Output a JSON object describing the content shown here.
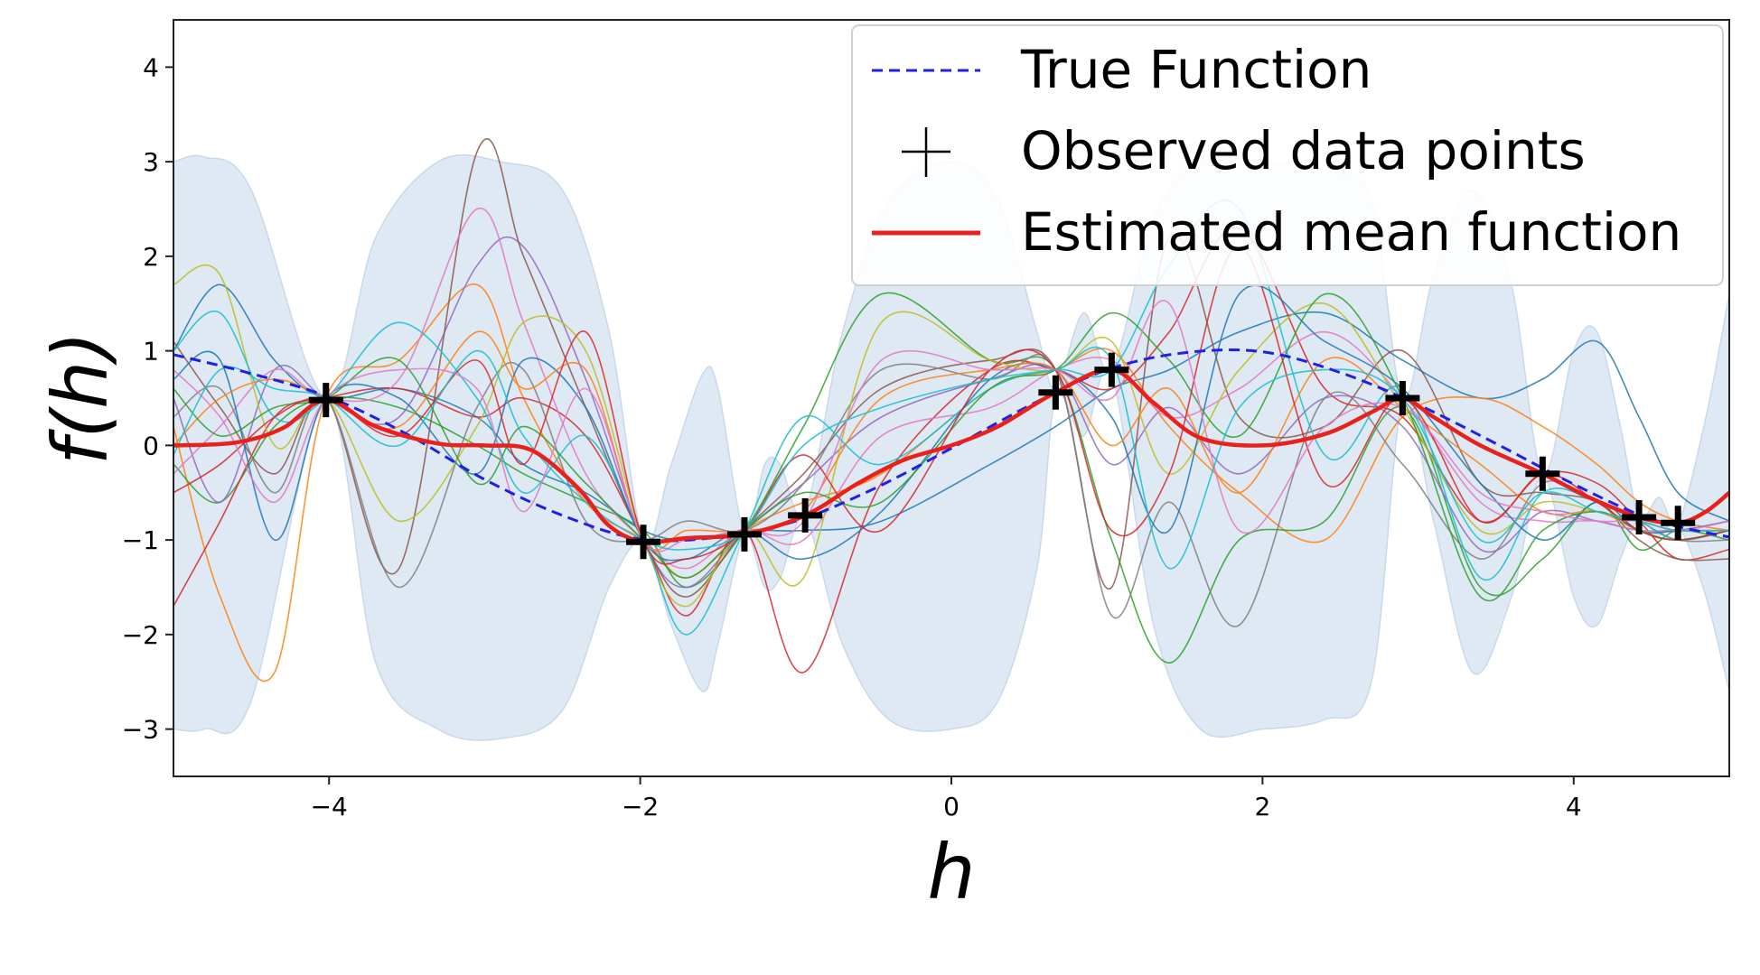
{
  "chart_data": {
    "type": "line",
    "xlabel": "h",
    "ylabel": "f(h)",
    "xlim": [
      -5,
      5
    ],
    "ylim": [
      -3.5,
      4.5
    ],
    "x_ticks": [
      -4,
      -2,
      0,
      2,
      4
    ],
    "y_ticks": [
      -3,
      -2,
      -1,
      0,
      1,
      2,
      3,
      4
    ],
    "x_tick_labels": [
      "−4",
      "−2",
      "0",
      "2",
      "4"
    ],
    "y_tick_labels": [
      "−3",
      "−2",
      "−1",
      "0",
      "1",
      "2",
      "3",
      "4"
    ],
    "grid": false,
    "legend_position": "top-right",
    "colors": {
      "true_function": "#1f1fe6",
      "mean_function": "#e8211c",
      "observations": "#000000",
      "band": "#dce8f3",
      "samples": [
        "#1f77b4",
        "#ff7f0e",
        "#2ca02c",
        "#d62728",
        "#9467bd",
        "#8c564b",
        "#e377c2",
        "#7f7f7f",
        "#bcbd22",
        "#17becf"
      ]
    },
    "series": [
      {
        "name": "True Function",
        "style": "dashed",
        "x": [
          -5,
          -4.5,
          -4,
          -3.5,
          -3,
          -2.5,
          -2,
          -1.5,
          -1,
          -0.5,
          0,
          0.5,
          1,
          1.5,
          2,
          2.5,
          3,
          3.5,
          4,
          4.5,
          5
        ],
        "y": [
          0.96,
          0.76,
          0.51,
          0.12,
          -0.36,
          -0.74,
          -0.99,
          -0.97,
          -0.8,
          -0.46,
          -0.03,
          0.42,
          0.8,
          0.98,
          0.99,
          0.77,
          0.43,
          0.02,
          -0.41,
          -0.78,
          -0.97
        ]
      },
      {
        "name": "Observed data points",
        "style": "markers",
        "x": [
          -4.02,
          -1.98,
          -1.33,
          -0.94,
          0.67,
          1.03,
          2.9,
          3.8,
          4.42,
          4.67
        ],
        "y": [
          0.48,
          -1.02,
          -0.94,
          -0.74,
          0.56,
          0.8,
          0.5,
          -0.3,
          -0.76,
          -0.82
        ]
      },
      {
        "name": "Estimated mean function",
        "style": "solid",
        "x": [
          -5,
          -4.6,
          -4.3,
          -4.02,
          -3.7,
          -3.3,
          -3.0,
          -2.7,
          -2.4,
          -2.2,
          -1.98,
          -1.7,
          -1.33,
          -0.94,
          -0.6,
          -0.3,
          0,
          0.3,
          0.67,
          1.03,
          1.3,
          1.6,
          2.0,
          2.4,
          2.7,
          2.9,
          3.1,
          3.4,
          3.8,
          4.1,
          4.42,
          4.67,
          4.85,
          5
        ],
        "y": [
          0.0,
          0.03,
          0.18,
          0.48,
          0.2,
          0.02,
          0.0,
          -0.05,
          -0.45,
          -0.85,
          -1.02,
          -0.98,
          -0.94,
          -0.74,
          -0.4,
          -0.15,
          0.0,
          0.2,
          0.56,
          0.8,
          0.45,
          0.08,
          0.0,
          0.12,
          0.35,
          0.5,
          0.3,
          0.0,
          -0.3,
          -0.55,
          -0.76,
          -0.82,
          -0.7,
          -0.5
        ]
      }
    ],
    "samples": [
      {
        "color": 0,
        "y": [
          1.0,
          1.7,
          0.9,
          0.5,
          0.6,
          0.3,
          -0.2,
          -0.5,
          -0.9,
          -1.0,
          -0.9,
          -0.9,
          -0.8,
          -0.2,
          0.2,
          0.6,
          0.8,
          1.2,
          1.4,
          0.9,
          0.5,
          0.7,
          1.1,
          0.3,
          -0.5,
          -0.8
        ]
      },
      {
        "color": 1,
        "y": [
          0.2,
          -1.6,
          -2.4,
          0.5,
          0.9,
          1.7,
          0.5,
          -0.6,
          -1.0,
          -1.4,
          -0.9,
          -0.6,
          -0.3,
          0.6,
          0.8,
          1.0,
          0.2,
          -0.5,
          -1.0,
          0.3,
          0.5,
          0.2,
          -0.2,
          -0.6,
          -0.8,
          -0.9
        ]
      },
      {
        "color": 2,
        "y": [
          -0.2,
          -0.6,
          0.2,
          0.5,
          0.4,
          0.0,
          -0.3,
          -0.6,
          -0.9,
          -1.5,
          -0.9,
          0.2,
          1.6,
          0.9,
          0.8,
          -1.0,
          -2.3,
          -1.0,
          -0.8,
          0.4,
          -1.5,
          -1.2,
          -0.6,
          -1.1,
          -0.9,
          -1.0
        ]
      },
      {
        "color": 3,
        "y": [
          -1.7,
          -0.8,
          0.3,
          0.5,
          0.6,
          0.3,
          0.5,
          0.1,
          -1.0,
          -1.8,
          -0.9,
          -2.4,
          -0.4,
          0.8,
          0.8,
          0.6,
          1.2,
          2.3,
          0.6,
          0.3,
          -0.8,
          -0.3,
          -0.4,
          -0.8,
          -1.2,
          -1.1
        ]
      },
      {
        "color": 4,
        "y": [
          0.5,
          -0.6,
          0.8,
          0.5,
          0.3,
          1.9,
          2.1,
          0.7,
          -1.0,
          -1.5,
          -0.9,
          -0.4,
          0.3,
          0.7,
          0.8,
          -0.2,
          0.4,
          -0.3,
          0.5,
          0.2,
          -1.1,
          -0.7,
          -0.8,
          -0.9,
          -0.9,
          -0.9
        ]
      },
      {
        "color": 5,
        "y": [
          1.1,
          0.4,
          -0.3,
          0.5,
          -1.3,
          3.1,
          2.0,
          0.4,
          -1.0,
          -1.6,
          -0.9,
          -0.3,
          0.6,
          0.9,
          0.8,
          -1.5,
          2.2,
          0.3,
          0.2,
          1.0,
          -0.4,
          -0.5,
          -0.6,
          -1.0,
          -1.2,
          -1.2
        ]
      },
      {
        "color": 6,
        "y": [
          -0.3,
          0.2,
          0.8,
          0.5,
          0.7,
          2.5,
          1.3,
          -0.3,
          -1.0,
          -1.3,
          -0.9,
          -1.0,
          0.1,
          0.4,
          0.8,
          0.9,
          0.3,
          0.6,
          1.2,
          0.5,
          -0.6,
          -0.8,
          -0.8,
          -0.9,
          -0.9,
          -0.8
        ]
      },
      {
        "color": 7,
        "y": [
          0.3,
          0.6,
          -0.5,
          0.5,
          -1.5,
          0.4,
          0.8,
          -0.8,
          -1.0,
          -0.8,
          -0.9,
          -0.4,
          0.8,
          0.7,
          0.8,
          -1.8,
          -0.6,
          -1.9,
          0.5,
          -0.2,
          -1.2,
          -0.4,
          -0.6,
          -0.8,
          -1.0,
          -1.0
        ]
      },
      {
        "color": 8,
        "y": [
          1.7,
          1.8,
          0.0,
          0.5,
          -0.8,
          0.2,
          1.3,
          1.0,
          -1.0,
          -1.7,
          -0.9,
          -1.4,
          1.3,
          0.9,
          0.8,
          1.1,
          -0.3,
          0.8,
          1.5,
          0.4,
          -0.9,
          -0.6,
          -0.7,
          -0.8,
          -0.9,
          -0.9
        ]
      },
      {
        "color": 9,
        "y": [
          1.0,
          1.4,
          0.3,
          0.5,
          1.3,
          0.5,
          -0.5,
          0.1,
          -1.0,
          -2.0,
          -0.9,
          0.3,
          -0.2,
          0.6,
          0.8,
          0.8,
          1.9,
          2.5,
          -0.1,
          0.6,
          -1.4,
          -0.5,
          -0.6,
          -0.8,
          -1.0,
          -0.9
        ]
      },
      {
        "color": 0,
        "y": [
          0.7,
          0.9,
          -1.0,
          0.5,
          0.5,
          -0.3,
          0.9,
          0.4,
          -1.0,
          -1.2,
          -0.9,
          -1.2,
          -0.7,
          0.7,
          0.8,
          0.3,
          -0.9,
          1.6,
          1.1,
          0.6,
          -0.4,
          -1.0,
          -0.6,
          -0.9,
          -0.9,
          -0.8
        ]
      },
      {
        "color": 1,
        "y": [
          0.0,
          0.5,
          0.7,
          0.5,
          0.2,
          1.2,
          0.6,
          0.8,
          -1.0,
          -0.9,
          -0.9,
          -0.7,
          0.5,
          0.8,
          0.8,
          0.0,
          0.6,
          -0.5,
          0.9,
          0.4,
          -0.2,
          -0.7,
          -0.7,
          -0.9,
          -1.0,
          -0.9
        ]
      },
      {
        "color": 2,
        "y": [
          0.6,
          0.1,
          0.4,
          0.5,
          0.9,
          -0.4,
          0.2,
          -0.4,
          -1.0,
          -1.4,
          -0.9,
          -0.5,
          -0.6,
          0.6,
          0.8,
          1.4,
          0.9,
          0.1,
          1.6,
          0.5,
          -1.6,
          -0.9,
          -0.7,
          -0.9,
          -1.0,
          -0.9
        ]
      },
      {
        "color": 3,
        "y": [
          -0.5,
          -0.2,
          0.3,
          0.5,
          0.1,
          0.9,
          -0.2,
          1.2,
          -1.0,
          -1.2,
          -0.9,
          -0.1,
          -0.9,
          0.8,
          0.8,
          -0.9,
          -0.3,
          2.1,
          -0.4,
          0.5,
          -0.8,
          -0.3,
          -0.6,
          -0.9,
          -1.0,
          -0.9
        ]
      },
      {
        "color": 6,
        "y": [
          0.8,
          0.3,
          -0.6,
          0.5,
          0.8,
          0.6,
          -0.7,
          0.6,
          -1.0,
          -1.0,
          -0.9,
          -0.8,
          0.9,
          0.8,
          0.8,
          0.5,
          1.5,
          -0.9,
          0.2,
          0.4,
          -0.5,
          -0.7,
          -0.8,
          -0.8,
          -0.9,
          -0.8
        ]
      },
      {
        "color": 9,
        "y": [
          -0.1,
          0.8,
          0.6,
          0.5,
          0.0,
          1.0,
          0.1,
          -0.6,
          -1.0,
          -1.1,
          -0.9,
          0.0,
          0.4,
          0.7,
          0.8,
          0.9,
          -1.3,
          0.4,
          0.8,
          0.5,
          -1.0,
          -0.5,
          -0.7,
          -0.8,
          -0.9,
          -0.9
        ]
      }
    ],
    "sample_x": [
      -5,
      -4.7,
      -4.35,
      -4.02,
      -3.55,
      -3.05,
      -2.75,
      -2.35,
      -1.98,
      -1.7,
      -1.33,
      -0.95,
      -0.45,
      0.25,
      0.67,
      1.03,
      1.4,
      1.85,
      2.4,
      2.9,
      3.4,
      3.8,
      4.15,
      4.42,
      4.67,
      5
    ],
    "band": {
      "x": [
        -5,
        -4.8,
        -4.5,
        -4.02,
        -3.7,
        -3.3,
        -2.9,
        -2.5,
        -2.2,
        -1.98,
        -1.8,
        -1.6,
        -1.5,
        -1.33,
        -1.2,
        -1.1,
        -0.94,
        -0.7,
        -0.4,
        0,
        0.3,
        0.55,
        0.67,
        0.85,
        1.03,
        1.3,
        1.6,
        2.0,
        2.4,
        2.7,
        2.9,
        3.1,
        3.35,
        3.6,
        3.8,
        4.0,
        4.15,
        4.3,
        4.42,
        4.55,
        4.67,
        4.85,
        5
      ],
      "upper": [
        3.0,
        3.05,
        2.7,
        0.5,
        2.2,
        3.0,
        3.0,
        2.7,
        1.2,
        -1.0,
        -0.2,
        0.75,
        0.6,
        -0.93,
        -0.2,
        -0.2,
        -0.7,
        1.2,
        2.6,
        3.0,
        2.6,
        1.2,
        0.6,
        1.4,
        0.8,
        2.4,
        3.0,
        3.0,
        2.9,
        2.6,
        0.5,
        1.8,
        2.7,
        1.7,
        -0.3,
        1.0,
        1.2,
        0.2,
        -0.75,
        -0.55,
        -0.82,
        0.3,
        1.6
      ],
      "lower": [
        -3.0,
        -3.0,
        -2.7,
        0.45,
        -2.3,
        -3.0,
        -3.1,
        -2.8,
        -1.5,
        -1.03,
        -1.9,
        -2.6,
        -2.1,
        -0.96,
        -1.5,
        -1.4,
        -0.78,
        -2.1,
        -2.9,
        -3.0,
        -2.7,
        -1.3,
        0.5,
        0.1,
        0.75,
        -1.9,
        -3.0,
        -3.0,
        -2.9,
        -2.5,
        0.45,
        -0.8,
        -2.4,
        -1.6,
        -0.32,
        -1.6,
        -1.9,
        -1.2,
        -0.78,
        -0.95,
        -0.84,
        -1.6,
        -2.6
      ]
    }
  }
}
